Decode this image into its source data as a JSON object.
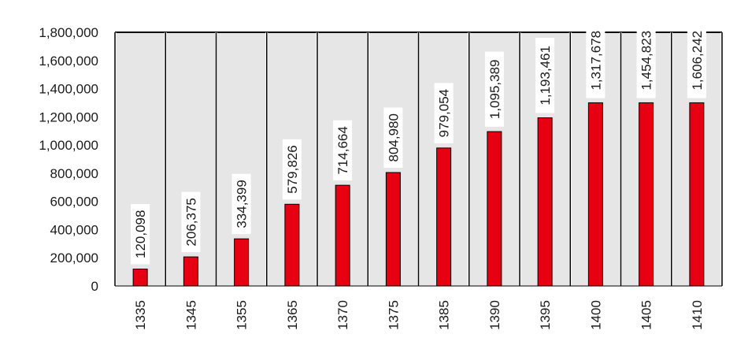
{
  "chart_data": {
    "type": "bar",
    "categories": [
      "1335",
      "1345",
      "1355",
      "1365",
      "1370",
      "1375",
      "1385",
      "1390",
      "1395",
      "1400",
      "1405",
      "1410"
    ],
    "values": [
      120098,
      206375,
      334399,
      579826,
      714664,
      804980,
      979054,
      1095389,
      1193461,
      1317678,
      1454823,
      1606242
    ],
    "value_labels": [
      "120,098",
      "206,375",
      "334,399",
      "579,826",
      "714,664",
      "804,980",
      "979,054",
      "1,095,389",
      "1,193,461",
      "1,317,678",
      "1,454,823",
      "1,606,242"
    ],
    "y_tick_labels": [
      "0",
      "200,000",
      "400,000",
      "600,000",
      "800,000",
      "1,000,000",
      "1,200,000",
      "1,400,000",
      "1,600,000",
      "1,800,000"
    ],
    "ylim": [
      0,
      1800000
    ],
    "y_tick_step": 200000,
    "title": "",
    "xlabel": "",
    "ylabel": "",
    "bar_color": "#e60012",
    "bar_edge_color": "#000000",
    "plot_background": "#e6e6e6",
    "grid": false,
    "legend": "none"
  }
}
